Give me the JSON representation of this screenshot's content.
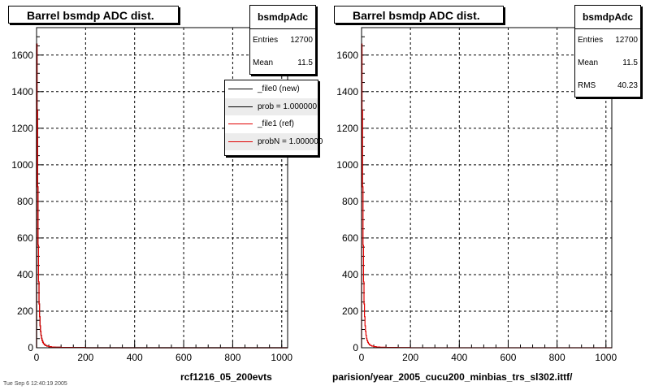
{
  "chart_data": [
    {
      "type": "line",
      "title": "Barrel bsmdp ADC dist.",
      "xlabel": "",
      "ylabel": "",
      "xlim": [
        0,
        1024
      ],
      "ylim": [
        0,
        1750
      ],
      "x_ticks": [
        "0",
        "200",
        "400",
        "600",
        "800",
        "1000"
      ],
      "y_ticks": [
        "0",
        "200",
        "400",
        "600",
        "800",
        "1000",
        "1200",
        "1400",
        "1600"
      ],
      "grid": true,
      "series": [
        {
          "name": "_file0 (new)",
          "color": "#000000",
          "x": [
            0,
            2,
            4,
            6,
            8,
            10,
            12,
            14,
            16,
            18,
            20,
            22,
            25,
            28,
            32,
            36,
            42,
            50,
            60,
            75,
            100,
            150,
            200,
            300,
            500,
            1024
          ],
          "values": [
            1660,
            1300,
            880,
            560,
            360,
            240,
            170,
            120,
            90,
            68,
            52,
            40,
            30,
            22,
            16,
            12,
            9,
            6,
            4,
            3,
            2,
            1,
            0,
            0,
            0,
            0
          ]
        },
        {
          "name": "_file1 (ref)",
          "color": "#e00000",
          "x": [
            0,
            2,
            4,
            6,
            8,
            10,
            12,
            14,
            16,
            18,
            20,
            22,
            25,
            28,
            32,
            36,
            42,
            50,
            60,
            75,
            100,
            150,
            200,
            300,
            500,
            1024
          ],
          "values": [
            1660,
            1300,
            880,
            560,
            360,
            240,
            170,
            120,
            90,
            68,
            52,
            40,
            30,
            22,
            16,
            12,
            9,
            6,
            4,
            3,
            2,
            1,
            0,
            0,
            0,
            0
          ]
        }
      ],
      "stats": {
        "name": "bsmdpAdc",
        "entries_label": "Entries",
        "entries": "12700",
        "mean_label": "Mean",
        "mean": "11.5"
      },
      "legend": [
        {
          "label": "_file0 (new)",
          "color": "#000000"
        },
        {
          "label": "prob = 1.000000",
          "color": "#000000"
        },
        {
          "label": "_file1 (ref)",
          "color": "#e00000"
        },
        {
          "label": "probN = 1.000000",
          "color": "#e00000"
        }
      ],
      "legend_position": "top-right",
      "footer": "rcf1216_05_200evts"
    },
    {
      "type": "line",
      "title": "Barrel bsmdp ADC dist.",
      "xlabel": "",
      "ylabel": "",
      "xlim": [
        0,
        1024
      ],
      "ylim": [
        0,
        1750
      ],
      "x_ticks": [
        "0",
        "200",
        "400",
        "600",
        "800",
        "1000"
      ],
      "y_ticks": [
        "0",
        "200",
        "400",
        "600",
        "800",
        "1000",
        "1200",
        "1400",
        "1600"
      ],
      "grid": true,
      "series": [
        {
          "name": "",
          "color": "#e00000",
          "x": [
            0,
            2,
            4,
            6,
            8,
            10,
            12,
            14,
            16,
            18,
            20,
            22,
            25,
            28,
            32,
            36,
            42,
            50,
            60,
            75,
            100,
            150,
            200,
            300,
            500,
            1024
          ],
          "values": [
            1660,
            1300,
            880,
            560,
            360,
            240,
            170,
            120,
            90,
            68,
            52,
            40,
            30,
            22,
            16,
            12,
            9,
            6,
            4,
            3,
            2,
            1,
            0,
            0,
            0,
            0
          ]
        }
      ],
      "stats": {
        "name": "bsmdpAdc",
        "entries_label": "Entries",
        "entries": "12700",
        "mean_label": "Mean",
        "mean": "11.5",
        "rms_label": "RMS",
        "rms": "40.23"
      },
      "footer": "parision/year_2005_cucu200_minbias_trs_sl302.ittf/"
    }
  ],
  "tiny_label": "Tue Sep 6 12:40:19 2005"
}
